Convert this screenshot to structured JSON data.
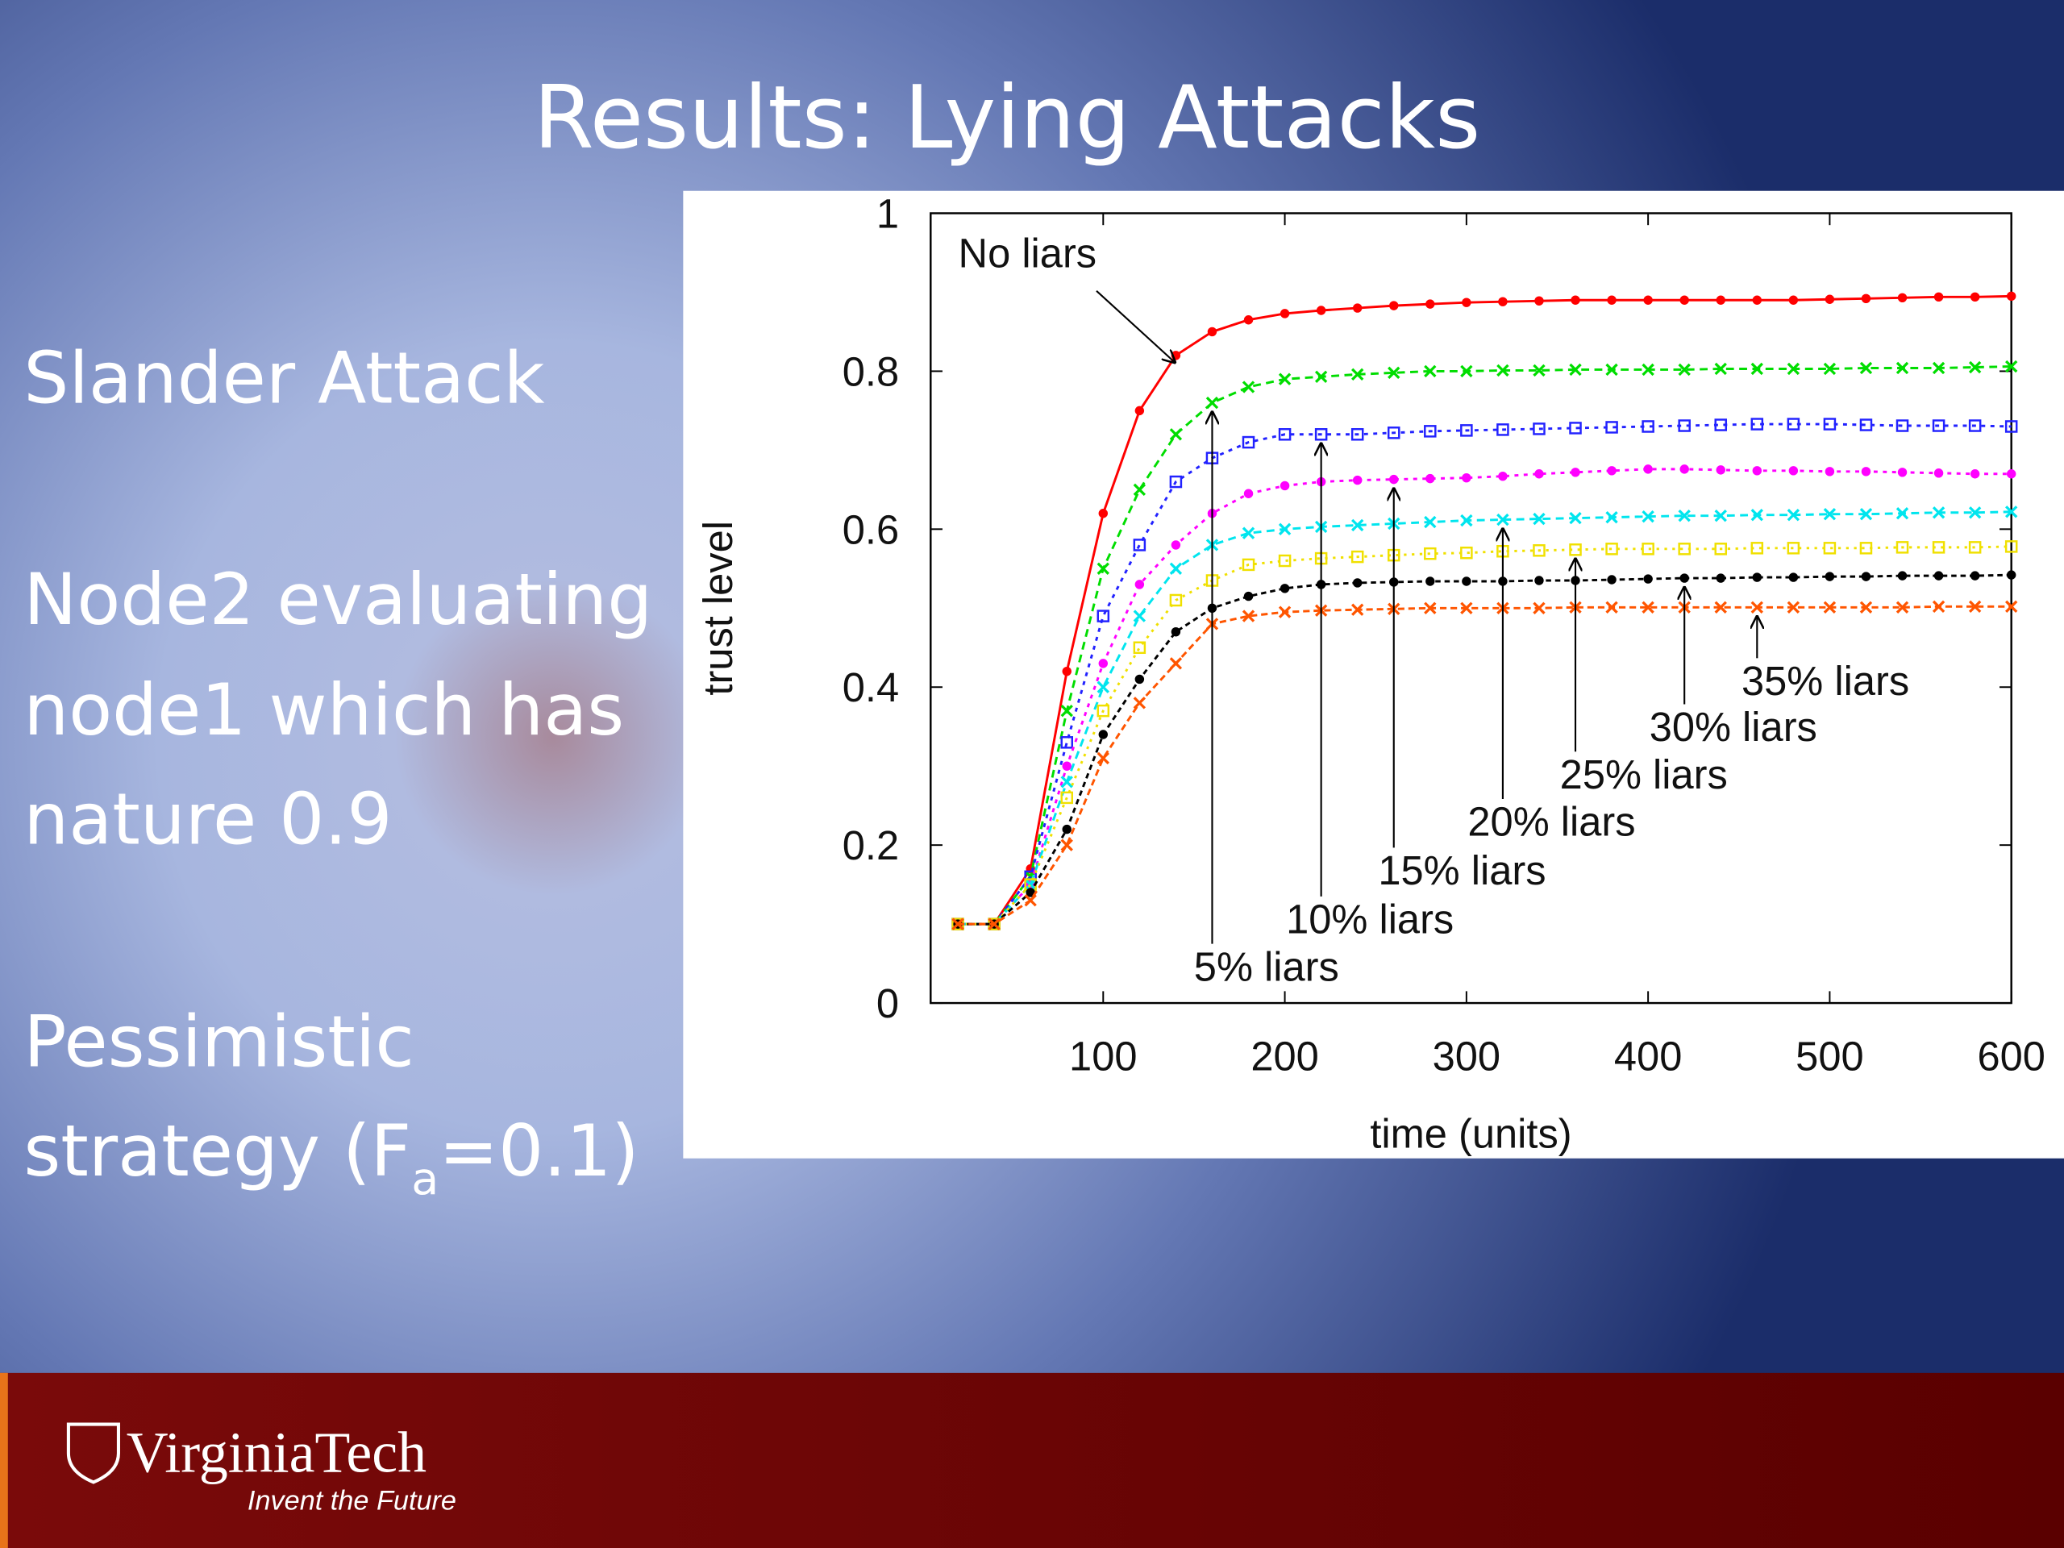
{
  "slide": {
    "title": "Results: Lying Attacks",
    "lines": [
      "Slander Attack",
      "Node2 evaluating",
      "node1 which has",
      "nature 0.9",
      "Pessimistic"
    ],
    "strategy_parts": [
      "strategy (F",
      "a",
      "=0.1)"
    ],
    "logo": "VirginiaTech",
    "tagline": "Invent the Future"
  },
  "chart_data": {
    "type": "line",
    "xlabel": "time (units)",
    "ylabel": "trust level",
    "xlim": [
      5,
      600
    ],
    "ylim": [
      0,
      1
    ],
    "xticks": [
      100,
      200,
      300,
      400,
      500,
      600
    ],
    "yticks": [
      0,
      0.2,
      0.4,
      0.6,
      0.8,
      1
    ],
    "x": [
      20,
      40,
      60,
      80,
      100,
      120,
      140,
      160,
      180,
      200,
      220,
      240,
      260,
      280,
      300,
      320,
      340,
      360,
      380,
      400,
      420,
      440,
      460,
      480,
      500,
      520,
      540,
      560,
      580,
      600
    ],
    "series": [
      {
        "name": "No liars",
        "color": "#ff0000",
        "values": [
          0.1,
          0.1,
          0.17,
          0.42,
          0.62,
          0.75,
          0.82,
          0.85,
          0.865,
          0.873,
          0.877,
          0.88,
          0.883,
          0.885,
          0.887,
          0.888,
          0.889,
          0.89,
          0.89,
          0.89,
          0.89,
          0.89,
          0.89,
          0.89,
          0.891,
          0.892,
          0.893,
          0.894,
          0.894,
          0.895
        ]
      },
      {
        "name": "5% liars",
        "color": "#00dd00",
        "values": [
          0.1,
          0.1,
          0.16,
          0.37,
          0.55,
          0.65,
          0.72,
          0.76,
          0.78,
          0.79,
          0.793,
          0.796,
          0.798,
          0.8,
          0.8,
          0.801,
          0.801,
          0.802,
          0.802,
          0.802,
          0.802,
          0.803,
          0.803,
          0.803,
          0.803,
          0.804,
          0.804,
          0.804,
          0.805,
          0.806
        ]
      },
      {
        "name": "10% liars",
        "color": "#2222ff",
        "values": [
          0.1,
          0.1,
          0.16,
          0.33,
          0.49,
          0.58,
          0.66,
          0.69,
          0.71,
          0.72,
          0.72,
          0.72,
          0.722,
          0.724,
          0.725,
          0.726,
          0.727,
          0.728,
          0.729,
          0.73,
          0.731,
          0.732,
          0.733,
          0.733,
          0.733,
          0.732,
          0.731,
          0.731,
          0.731,
          0.73
        ]
      },
      {
        "name": "15% liars",
        "color": "#ff00ff",
        "values": [
          0.1,
          0.1,
          0.15,
          0.3,
          0.43,
          0.53,
          0.58,
          0.62,
          0.645,
          0.655,
          0.66,
          0.662,
          0.663,
          0.664,
          0.665,
          0.667,
          0.67,
          0.672,
          0.674,
          0.676,
          0.676,
          0.675,
          0.674,
          0.674,
          0.673,
          0.673,
          0.672,
          0.671,
          0.67,
          0.67
        ]
      },
      {
        "name": "20% liars",
        "color": "#00e5ee",
        "values": [
          0.1,
          0.1,
          0.15,
          0.28,
          0.4,
          0.49,
          0.55,
          0.58,
          0.595,
          0.6,
          0.603,
          0.605,
          0.607,
          0.609,
          0.611,
          0.612,
          0.613,
          0.614,
          0.615,
          0.616,
          0.617,
          0.617,
          0.618,
          0.618,
          0.619,
          0.619,
          0.62,
          0.621,
          0.621,
          0.622
        ]
      },
      {
        "name": "25% liars",
        "color": "#f0e000",
        "values": [
          0.1,
          0.1,
          0.15,
          0.26,
          0.37,
          0.45,
          0.51,
          0.535,
          0.555,
          0.56,
          0.563,
          0.565,
          0.567,
          0.569,
          0.57,
          0.572,
          0.573,
          0.574,
          0.575,
          0.575,
          0.575,
          0.575,
          0.576,
          0.576,
          0.576,
          0.576,
          0.577,
          0.577,
          0.577,
          0.578
        ]
      },
      {
        "name": "30% liars",
        "color": "#000000",
        "values": [
          0.1,
          0.1,
          0.14,
          0.22,
          0.34,
          0.41,
          0.47,
          0.5,
          0.515,
          0.525,
          0.53,
          0.532,
          0.533,
          0.534,
          0.534,
          0.534,
          0.535,
          0.535,
          0.536,
          0.537,
          0.538,
          0.538,
          0.539,
          0.539,
          0.54,
          0.54,
          0.541,
          0.541,
          0.541,
          0.542
        ]
      },
      {
        "name": "35% liars",
        "color": "#ff5500",
        "values": [
          0.1,
          0.1,
          0.13,
          0.2,
          0.31,
          0.38,
          0.43,
          0.48,
          0.49,
          0.495,
          0.497,
          0.498,
          0.499,
          0.5,
          0.5,
          0.5,
          0.5,
          0.501,
          0.501,
          0.501,
          0.501,
          0.501,
          0.501,
          0.501,
          0.501,
          0.501,
          0.501,
          0.502,
          0.502,
          0.502
        ]
      }
    ]
  }
}
